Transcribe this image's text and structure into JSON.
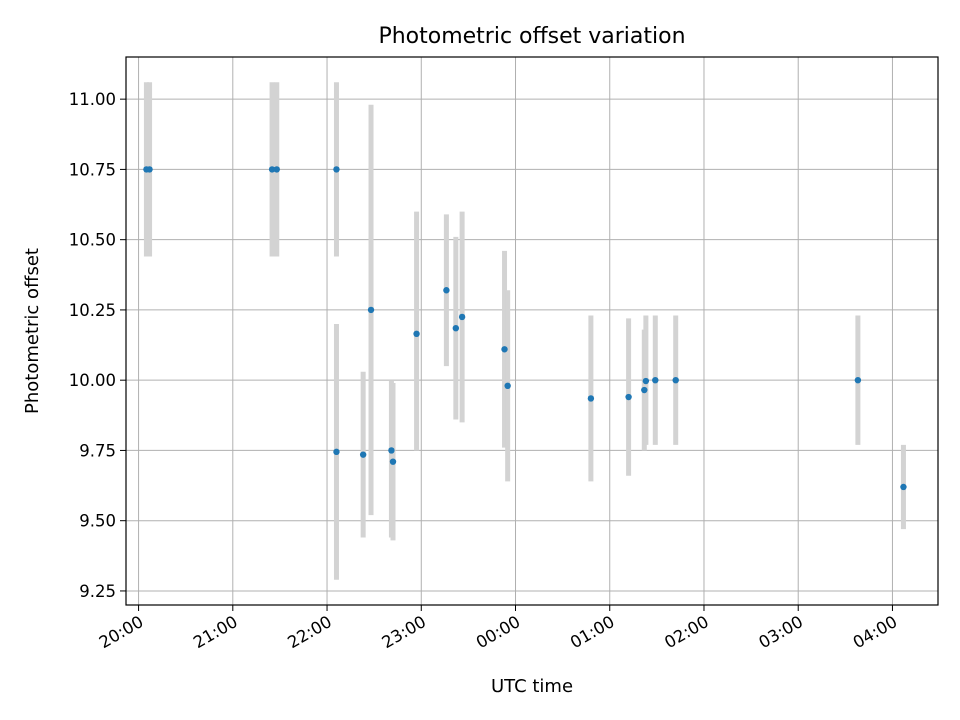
{
  "chart_data": {
    "type": "scatter",
    "title": "Photometric offset variation",
    "xlabel": "UTC time",
    "ylabel": "Photometric offset",
    "x_ticks": [
      "20:00",
      "21:00",
      "22:00",
      "23:00",
      "00:00",
      "01:00",
      "02:00",
      "03:00",
      "04:00"
    ],
    "y_ticks": [
      "9.25",
      "9.50",
      "9.75",
      "10.00",
      "10.25",
      "10.50",
      "10.75",
      "11.00"
    ],
    "xlim": [
      "19:52",
      "04:29"
    ],
    "ylim": [
      9.2,
      11.15
    ],
    "grid": true,
    "colors": {
      "point": "#1f77b4",
      "errorbar": "#d3d3d3",
      "grid": "#b0b0b0"
    },
    "points": [
      {
        "x": "20:05",
        "y": 10.75,
        "lo": 10.44,
        "hi": 11.06
      },
      {
        "x": "20:07",
        "y": 10.75,
        "lo": 10.44,
        "hi": 11.06
      },
      {
        "x": "21:25",
        "y": 10.75,
        "lo": 10.44,
        "hi": 11.06
      },
      {
        "x": "21:28",
        "y": 10.75,
        "lo": 10.44,
        "hi": 11.06
      },
      {
        "x": "22:06",
        "y": 10.75,
        "lo": 10.44,
        "hi": 11.06
      },
      {
        "x": "22:06",
        "y": 9.745,
        "lo": 9.29,
        "hi": 10.2
      },
      {
        "x": "22:23",
        "y": 9.735,
        "lo": 9.44,
        "hi": 10.03
      },
      {
        "x": "22:28",
        "y": 10.25,
        "lo": 9.52,
        "hi": 10.98
      },
      {
        "x": "22:41",
        "y": 9.75,
        "lo": 9.44,
        "hi": 10.0
      },
      {
        "x": "22:42",
        "y": 9.71,
        "lo": 9.43,
        "hi": 9.99
      },
      {
        "x": "22:57",
        "y": 10.165,
        "lo": 9.75,
        "hi": 10.6
      },
      {
        "x": "23:16",
        "y": 10.32,
        "lo": 10.05,
        "hi": 10.59
      },
      {
        "x": "23:22",
        "y": 10.185,
        "lo": 9.86,
        "hi": 10.51
      },
      {
        "x": "23:26",
        "y": 10.225,
        "lo": 9.85,
        "hi": 10.6
      },
      {
        "x": "23:53",
        "y": 10.11,
        "lo": 9.76,
        "hi": 10.46
      },
      {
        "x": "23:55",
        "y": 9.98,
        "lo": 9.64,
        "hi": 10.32
      },
      {
        "x": "00:48",
        "y": 9.935,
        "lo": 9.64,
        "hi": 10.23
      },
      {
        "x": "01:12",
        "y": 9.94,
        "lo": 9.66,
        "hi": 10.22
      },
      {
        "x": "01:22",
        "y": 9.965,
        "lo": 9.75,
        "hi": 10.18
      },
      {
        "x": "01:23",
        "y": 9.997,
        "lo": 9.77,
        "hi": 10.23
      },
      {
        "x": "01:29",
        "y": 10.0,
        "lo": 9.77,
        "hi": 10.23
      },
      {
        "x": "01:42",
        "y": 10.0,
        "lo": 9.77,
        "hi": 10.23
      },
      {
        "x": "03:38",
        "y": 10.0,
        "lo": 9.77,
        "hi": 10.23
      },
      {
        "x": "04:07",
        "y": 9.62,
        "lo": 9.47,
        "hi": 9.77
      }
    ]
  }
}
